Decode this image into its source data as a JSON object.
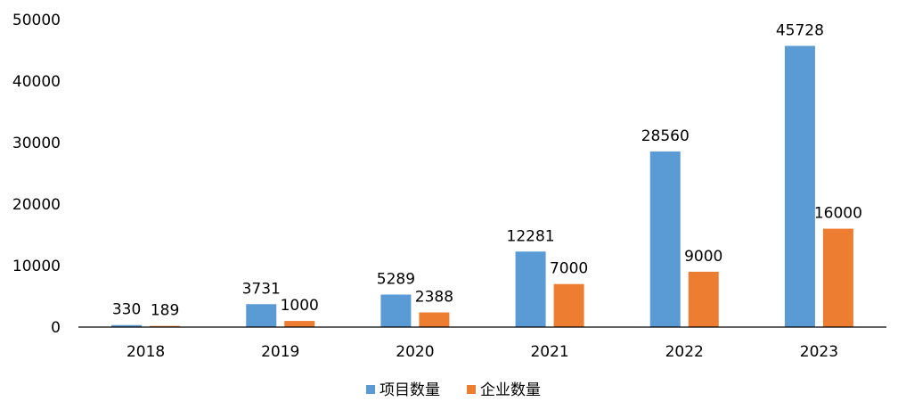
{
  "chart_data": {
    "type": "bar",
    "title": "",
    "xlabel": "",
    "ylabel": "",
    "categories": [
      "2018",
      "2019",
      "2020",
      "2021",
      "2022",
      "2023"
    ],
    "series": [
      {
        "name": "项目数量",
        "color": "#5B9BD5",
        "values": [
          330,
          3731,
          5289,
          12281,
          28560,
          45728
        ]
      },
      {
        "name": "企业数量",
        "color": "#ED7D31",
        "values": [
          189,
          1000,
          2388,
          7000,
          9000,
          16000
        ]
      }
    ],
    "ylim": [
      0,
      50000
    ],
    "yticks": [
      0,
      10000,
      20000,
      30000,
      40000,
      50000
    ],
    "grid": false,
    "legend_position": "bottom"
  }
}
